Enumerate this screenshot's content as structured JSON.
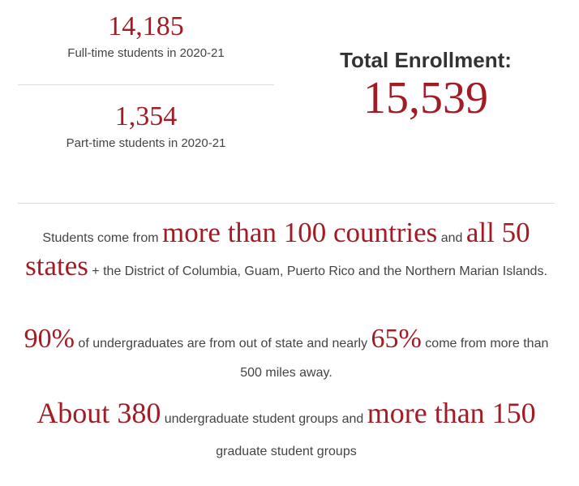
{
  "stats": {
    "full_time": {
      "value": "14,185",
      "label": "Full-time students in 2020-21"
    },
    "part_time": {
      "value": "1,354",
      "label": "Part-time students in 2020-21"
    },
    "total": {
      "heading": "Total Enrollment:",
      "value": "15,539"
    }
  },
  "facts": {
    "origins": {
      "intro": "Students come from ",
      "countries": "more than 100 countries",
      "and": " and ",
      "states": "all 50 states",
      "rest": " + the District of Columbia, Guam, Puerto Rico and the Northern Marian Islands."
    },
    "out_of_state": {
      "pct_out_of_state": "90%",
      "middle": " of undergraduates are from out of state and nearly ",
      "pct_far": "65%",
      "rest": " come from more than 500 miles away."
    },
    "groups": {
      "undergrad_count": "About 380",
      "undergrad_text": " undergraduate student groups and ",
      "grad_count": "more than 150",
      "grad_text": " graduate student groups"
    }
  },
  "colors": {
    "accent": "#a11c24",
    "text": "#444444",
    "heading": "#333333",
    "divider": "#dddddd"
  }
}
